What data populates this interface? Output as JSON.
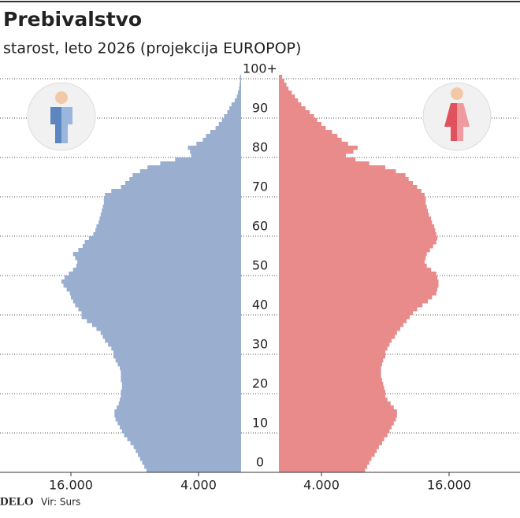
{
  "chart_data": {
    "type": "pyramid",
    "title": "Prebivalstvo",
    "subtitle": "starost, leto 2026 (projekcija EUROPOP)",
    "y": [
      0,
      1,
      2,
      3,
      4,
      5,
      6,
      7,
      8,
      9,
      10,
      11,
      12,
      13,
      14,
      15,
      16,
      17,
      18,
      19,
      20,
      21,
      22,
      23,
      24,
      25,
      26,
      27,
      28,
      29,
      30,
      31,
      32,
      33,
      34,
      35,
      36,
      37,
      38,
      39,
      40,
      41,
      42,
      43,
      44,
      45,
      46,
      47,
      48,
      49,
      50,
      51,
      52,
      53,
      54,
      55,
      56,
      57,
      58,
      59,
      60,
      61,
      62,
      63,
      64,
      65,
      66,
      67,
      68,
      69,
      70,
      71,
      72,
      73,
      74,
      75,
      76,
      77,
      78,
      79,
      80,
      81,
      82,
      83,
      84,
      85,
      86,
      87,
      88,
      89,
      90,
      91,
      92,
      93,
      94,
      95,
      96,
      97,
      98,
      99,
      100
    ],
    "series": [
      {
        "side": "left",
        "color": "#9aaed0",
        "values": [
          8900,
          9100,
          9300,
          9500,
          9700,
          9900,
          10100,
          10400,
          10700,
          11000,
          11200,
          11400,
          11600,
          11800,
          11900,
          11900,
          11700,
          11500,
          11400,
          11300,
          11300,
          11200,
          11200,
          11300,
          11300,
          11300,
          11400,
          11600,
          11800,
          12000,
          12000,
          12200,
          12500,
          12800,
          13000,
          13200,
          13600,
          14000,
          14500,
          15000,
          15000,
          15300,
          15600,
          15800,
          16000,
          16100,
          16400,
          16700,
          16900,
          16600,
          16200,
          15800,
          15500,
          15400,
          15600,
          15800,
          15300,
          14900,
          14700,
          14300,
          13900,
          13700,
          13600,
          13400,
          13300,
          13200,
          13100,
          13000,
          12900,
          12900,
          12800,
          12200,
          11300,
          10900,
          10500,
          10200,
          9500,
          8800,
          7600,
          6200,
          4700,
          4800,
          5000,
          4200,
          3600,
          3300,
          2900,
          2400,
          2100,
          1800,
          1600,
          1300,
          1100,
          900,
          600,
          400,
          300,
          200,
          150,
          100,
          100
        ]
      },
      {
        "side": "right",
        "color": "#e98b8b",
        "values": [
          8100,
          8300,
          8500,
          8700,
          9000,
          9200,
          9400,
          9700,
          9900,
          10200,
          10400,
          10600,
          10800,
          11000,
          11100,
          11100,
          10800,
          10500,
          10200,
          10000,
          10000,
          9900,
          9800,
          9700,
          9600,
          9600,
          9600,
          9700,
          9800,
          10000,
          10000,
          10200,
          10400,
          10600,
          10900,
          11100,
          11400,
          11700,
          12000,
          12300,
          12600,
          13000,
          13500,
          14000,
          14400,
          14800,
          14900,
          15000,
          15000,
          14900,
          14800,
          14300,
          13900,
          13700,
          13800,
          13900,
          14200,
          14500,
          14800,
          14900,
          14800,
          14700,
          14600,
          14400,
          14300,
          14100,
          14000,
          13900,
          13800,
          13800,
          13700,
          13400,
          13000,
          12600,
          12200,
          11900,
          11000,
          10000,
          8500,
          7200,
          6300,
          7000,
          7400,
          6500,
          5900,
          5500,
          5000,
          4400,
          4000,
          3600,
          3300,
          2900,
          2500,
          2100,
          1800,
          1500,
          1200,
          900,
          700,
          500,
          300
        ]
      }
    ],
    "ylim": [
      0,
      101
    ],
    "yticks": [
      0,
      10,
      20,
      30,
      40,
      50,
      60,
      70,
      80,
      90,
      {
        "value": 100,
        "label": "100+"
      }
    ],
    "xlim": [
      0,
      22000
    ],
    "xticks": [
      {
        "value": 4000,
        "label": "4.000"
      },
      {
        "value": 16000,
        "label": "16.000"
      }
    ],
    "grid": true,
    "source": "Vir: Surs",
    "logo": "DELO"
  }
}
